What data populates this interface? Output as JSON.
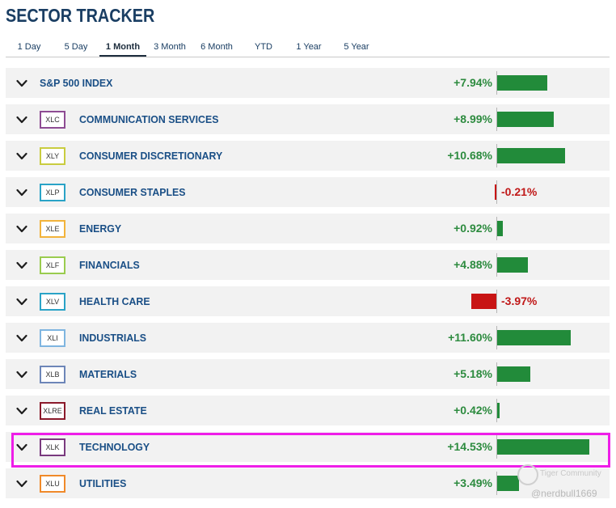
{
  "page": {
    "title": "SECTOR TRACKER"
  },
  "tabs": [
    {
      "label": "1 Day",
      "active": false
    },
    {
      "label": "5 Day",
      "active": false
    },
    {
      "label": "1 Month",
      "active": true
    },
    {
      "label": "3 Month",
      "active": false
    },
    {
      "label": "6 Month",
      "active": false
    },
    {
      "label": "YTD",
      "active": false
    },
    {
      "label": "1 Year",
      "active": false
    },
    {
      "label": "5 Year",
      "active": false
    }
  ],
  "rows": [
    {
      "name": "S&P 500 INDEX",
      "ticker": "",
      "change": "+7.94%",
      "value": 7.94,
      "badge_color": ""
    },
    {
      "name": "COMMUNICATION SERVICES",
      "ticker": "XLC",
      "change": "+8.99%",
      "value": 8.99,
      "badge_color": "#8e4c93"
    },
    {
      "name": "CONSUMER DISCRETIONARY",
      "ticker": "XLY",
      "change": "+10.68%",
      "value": 10.68,
      "badge_color": "#c9cc3f"
    },
    {
      "name": "CONSUMER STAPLES",
      "ticker": "XLP",
      "change": "-0.21%",
      "value": -0.21,
      "badge_color": "#2aa3c7"
    },
    {
      "name": "ENERGY",
      "ticker": "XLE",
      "change": "+0.92%",
      "value": 0.92,
      "badge_color": "#f2b33b"
    },
    {
      "name": "FINANCIALS",
      "ticker": "XLF",
      "change": "+4.88%",
      "value": 4.88,
      "badge_color": "#9acc4f"
    },
    {
      "name": "HEALTH CARE",
      "ticker": "XLV",
      "change": "-3.97%",
      "value": -3.97,
      "badge_color": "#2aa3c7"
    },
    {
      "name": "INDUSTRIALS",
      "ticker": "XLI",
      "change": "+11.60%",
      "value": 11.6,
      "badge_color": "#7fb5e0"
    },
    {
      "name": "MATERIALS",
      "ticker": "XLB",
      "change": "+5.18%",
      "value": 5.18,
      "badge_color": "#6d86b8"
    },
    {
      "name": "REAL ESTATE",
      "ticker": "XLRE",
      "change": "+0.42%",
      "value": 0.42,
      "badge_color": "#8b1a2b"
    },
    {
      "name": "TECHNOLOGY",
      "ticker": "XLK",
      "change": "+14.53%",
      "value": 14.53,
      "badge_color": "#7a3a7e"
    },
    {
      "name": "UTILITIES",
      "ticker": "XLU",
      "change": "+3.49%",
      "value": 3.49,
      "badge_color": "#f08a2a"
    }
  ],
  "highlighted_row": "TECHNOLOGY",
  "watermark": {
    "brand": "Tiger Community",
    "handle": "@nerdbull1669"
  },
  "colors": {
    "positive": "#2d8b3f",
    "negative": "#c01818",
    "bar_positive": "#228b3a",
    "bar_negative": "#c81414",
    "highlight": "#ee1ee8",
    "title": "#1a3e63"
  }
}
